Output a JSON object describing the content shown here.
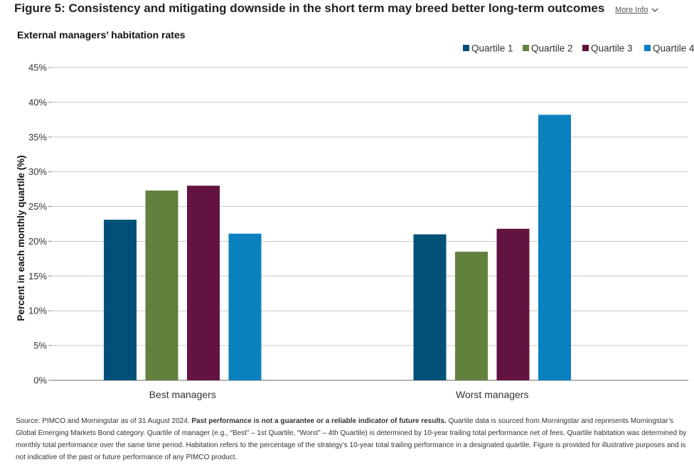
{
  "header": {
    "title": "Figure 5: Consistency and mitigating downside in the short term may breed better long-term outcomes",
    "more_info": "More Info",
    "more_info_icon": "chevron-down-icon"
  },
  "chart_data": {
    "type": "bar",
    "title": "External managers’ habitation rates",
    "ylabel": "Percent in each monthly quartile (%)",
    "xlabel": "",
    "categories": [
      "Best managers",
      "Worst managers"
    ],
    "series": [
      {
        "name": "Quartile 1",
        "color": "#005078",
        "values": [
          23.1,
          21.0
        ]
      },
      {
        "name": "Quartile 2",
        "color": "#62813d",
        "values": [
          27.3,
          18.5
        ]
      },
      {
        "name": "Quartile 3",
        "color": "#631340",
        "values": [
          28.0,
          21.8
        ]
      },
      {
        "name": "Quartile 4",
        "color": "#0b80be",
        "values": [
          21.1,
          38.2
        ]
      }
    ],
    "ylim": [
      0,
      45
    ],
    "yticks": [
      "0%",
      "5%",
      "10%",
      "15%",
      "20%",
      "25%",
      "30%",
      "35%",
      "40%",
      "45%"
    ],
    "grid": true,
    "legend_position": "top-right"
  },
  "footnote": {
    "lead": "Source: PIMCO and Morningstar as of 31 August 2024. ",
    "bold": "Past performance is not a guarantee or a reliable indicator of future results.",
    "rest": " Quartile data is sourced from Morningstar and represents Morningstar’s Global Emerging Markets Bond category. Quartile of manager (e.g., “Best” – 1st Quartile, “Worst” – 4th Quartile) is determined by 10-year trailing total performance net of fees. Quartile habitation was determined by monthly total performance over the same time period. Habitation refers to the percentage of the strategy’s 10-year total trailing performance in a designated quartile. Figure is provided for illustrative purposes and is not indicative of the past or future performance of any PIMCO product."
  }
}
